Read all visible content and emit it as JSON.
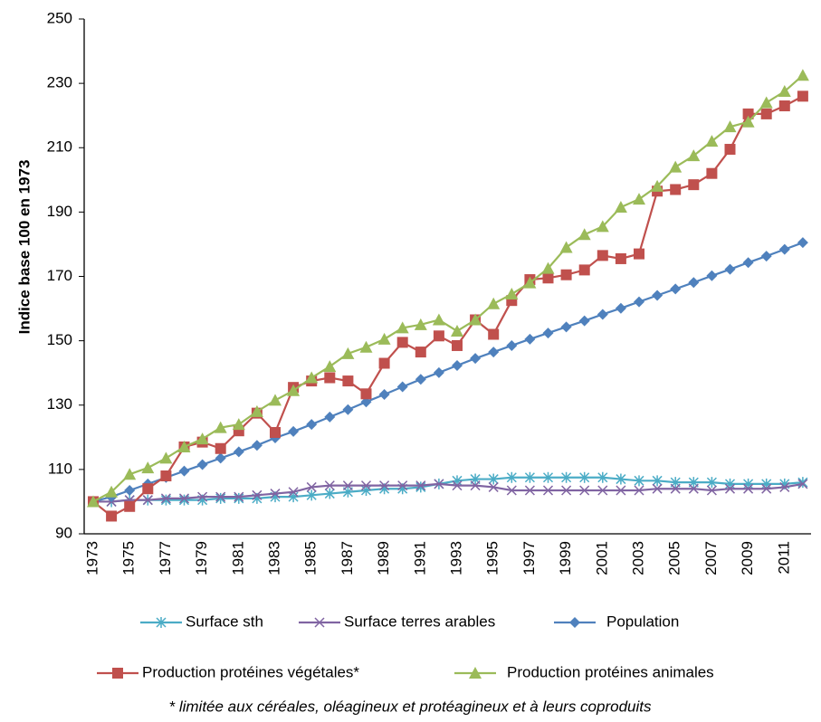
{
  "chart_data": {
    "type": "line",
    "y_label": "Indice base 100 en 1973",
    "note": "* limitée aux céréales, oléagineux et protéagineux et à leurs coproduits",
    "categories": [
      "1973",
      null,
      "1975",
      null,
      "1977",
      null,
      "1979",
      null,
      "1981",
      null,
      "1983",
      null,
      "1985",
      null,
      "1987",
      null,
      "1989",
      null,
      "1991",
      null,
      "1993",
      null,
      "1995",
      null,
      "1997",
      null,
      "1999",
      null,
      "2001",
      null,
      "2003",
      null,
      "2005",
      null,
      "2007",
      null,
      "2009",
      null,
      "2011",
      null
    ],
    "ylim": [
      90,
      250
    ],
    "yticks": [
      90,
      110,
      130,
      150,
      170,
      190,
      210,
      230,
      250
    ],
    "series": [
      {
        "name": "Surface sth",
        "color": "#4bacc6",
        "marker": "asterisk",
        "values": [
          100,
          100,
          100.5,
          100.5,
          100.5,
          100.5,
          100.5,
          101,
          101,
          101,
          101.5,
          101.5,
          102,
          102.5,
          103,
          103.5,
          104,
          104,
          104.5,
          105.5,
          106.5,
          107,
          107,
          107.5,
          107.5,
          107.5,
          107.5,
          107.5,
          107.5,
          107,
          106.5,
          106.5,
          106,
          106,
          106,
          105.5,
          105.5,
          105.5,
          105.5,
          106
        ]
      },
      {
        "name": "Surface terres arables",
        "color": "#8064a2",
        "marker": "x",
        "values": [
          100,
          100,
          100.5,
          100.5,
          101,
          101,
          101.5,
          101.5,
          101.5,
          102,
          102.5,
          103,
          104.5,
          105,
          105,
          105,
          105,
          105,
          105,
          105.5,
          105,
          105,
          104.5,
          103.5,
          103.5,
          103.5,
          103.5,
          103.5,
          103.5,
          103.5,
          103.5,
          104,
          104,
          104,
          103.5,
          104,
          104,
          104,
          104.5,
          105.5
        ]
      },
      {
        "name": "Population",
        "color": "#4f81bd",
        "marker": "diamond",
        "values": [
          100,
          101.5,
          103.5,
          105.5,
          107.5,
          109.5,
          111.5,
          113.5,
          115.5,
          117.5,
          119.8,
          121.8,
          124,
          126.3,
          128.6,
          131,
          133.3,
          135.7,
          138,
          140.1,
          142.3,
          144.5,
          146.5,
          148.5,
          150.5,
          152.4,
          154.3,
          156.2,
          158.2,
          160.1,
          162.1,
          164.1,
          166.1,
          168.1,
          170.2,
          172.2,
          174.3,
          176.3,
          178.4,
          180.5
        ]
      },
      {
        "name": "Production protéines végétales*",
        "color": "#c0504d",
        "marker": "square",
        "values": [
          100,
          95.5,
          98.5,
          104,
          108,
          117,
          118.5,
          116.5,
          122,
          127.5,
          121.5,
          135.5,
          137.5,
          138.5,
          137.5,
          133.5,
          143,
          149.5,
          146.5,
          151.5,
          148.5,
          156.5,
          152,
          162.5,
          169,
          169.5,
          170.5,
          172,
          176.5,
          175.5,
          177,
          196.5,
          197,
          198.5,
          202,
          209.5,
          220.5,
          220.5,
          223,
          226
        ]
      },
      {
        "name": "Production protéines animales",
        "color": "#9bbb59",
        "marker": "triangle",
        "values": [
          100,
          103,
          108.5,
          110.5,
          113.5,
          117,
          119.5,
          123,
          124,
          128,
          131.5,
          134.5,
          138.5,
          142,
          146,
          148,
          150.5,
          154,
          155,
          156.5,
          153,
          156.5,
          161.5,
          164.5,
          168,
          172.5,
          179,
          183,
          185.5,
          191.5,
          194,
          198,
          204,
          207.5,
          212,
          216.5,
          218,
          224,
          227.5,
          232.5
        ]
      }
    ]
  }
}
